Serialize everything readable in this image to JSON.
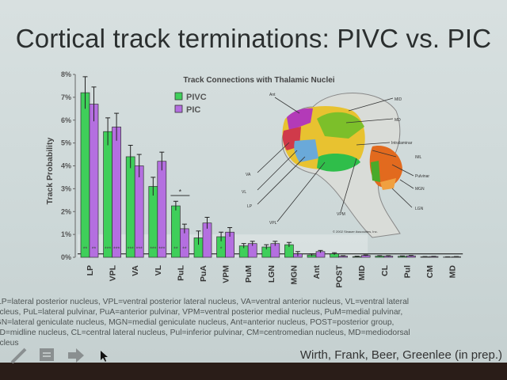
{
  "slide_title": "Cortical track terminations: PIVC vs. PIC",
  "chart_data": {
    "type": "bar",
    "title": "Track Connections with Thalamic Nuclei",
    "ylabel": "Track Probability",
    "xlabel": "",
    "ylim": [
      0,
      8
    ],
    "yticks": [
      "0%",
      "1%",
      "2%",
      "3%",
      "4%",
      "5%",
      "6%",
      "7%",
      "8%"
    ],
    "legend_position": "top-left",
    "categories": [
      "LP",
      "VPL",
      "VA",
      "VL",
      "PuL",
      "PuA",
      "VPM",
      "PuM",
      "LGN",
      "MGN",
      "Ant",
      "POST",
      "MID",
      "CL",
      "Pul",
      "CM",
      "MD"
    ],
    "series": [
      {
        "name": "PIVC",
        "color": "#3fcf5a",
        "values": [
          7.2,
          5.5,
          4.4,
          3.1,
          2.25,
          0.85,
          0.9,
          0.5,
          0.45,
          0.55,
          0.1,
          0.15,
          0.03,
          0.05,
          0.04,
          0.02,
          0.01
        ],
        "errors": [
          0.7,
          0.6,
          0.5,
          0.4,
          0.2,
          0.3,
          0.2,
          0.1,
          0.1,
          0.1,
          0.05,
          0.05,
          0.02,
          0.02,
          0.02,
          0.01,
          0.01
        ],
        "significance": [
          "**",
          "***",
          "***",
          "***",
          "**",
          "",
          "*",
          "",
          "",
          "",
          "",
          "",
          "",
          "",
          "",
          "",
          ""
        ]
      },
      {
        "name": "PIC",
        "color": "#b46fe0",
        "values": [
          6.7,
          5.7,
          4.0,
          4.2,
          1.25,
          1.5,
          1.1,
          0.6,
          0.6,
          0.15,
          0.25,
          0.05,
          0.08,
          0.05,
          0.06,
          0.03,
          0.02
        ],
        "errors": [
          0.75,
          0.6,
          0.5,
          0.4,
          0.2,
          0.25,
          0.2,
          0.1,
          0.1,
          0.1,
          0.05,
          0.02,
          0.02,
          0.02,
          0.02,
          0.01,
          0.01
        ],
        "significance": [
          "**",
          "***",
          "***",
          "***",
          "**",
          "",
          "",
          "",
          "",
          "",
          "",
          "",
          "",
          "",
          "",
          "",
          ""
        ]
      }
    ],
    "annotations": [
      {
        "text": "*",
        "between": "PuL PIVC vs PIC"
      }
    ],
    "reference_line": 0.15,
    "shaded_band_upper": 1.0
  },
  "brain_figure": {
    "labels": [
      "Ant",
      "MID",
      "MD",
      "Intralaminar",
      "IML",
      "Pulvinar",
      "MGN",
      "LGN",
      "VPM",
      "VPL",
      "LP",
      "VL",
      "VA"
    ],
    "copyright": "© 2002 Sinauer Associates, Inc."
  },
  "caption_lines": [
    "LP=lateral posterior nucleus, VPL=ventral posterior lateral nucleus, VA=ventral anterior nucleus, VL=ventral lateral",
    "nucleus, PuL=lateral pulvinar, PuA=anterior pulvinar, VPM=ventral posterior medial nucleus, PuM=medial pulvinar,",
    "LGN=lateral geniculate nucleus, MGN=medial geniculate nucleus, Ant=anterior nucleus, POST=posterior group,",
    "MID=midline nucleus, CL=central lateral nucleus, Pul=inferior pulvinar, CM=centromedian nucleus, MD=mediodorsal",
    "nucleus"
  ],
  "credit": "Wirth, Frank, Beer, Greenlee (in prep.)",
  "toolbar_icons": [
    "pen-icon",
    "slides-menu-icon",
    "next-arrow-icon",
    "mouse-cursor-icon"
  ]
}
